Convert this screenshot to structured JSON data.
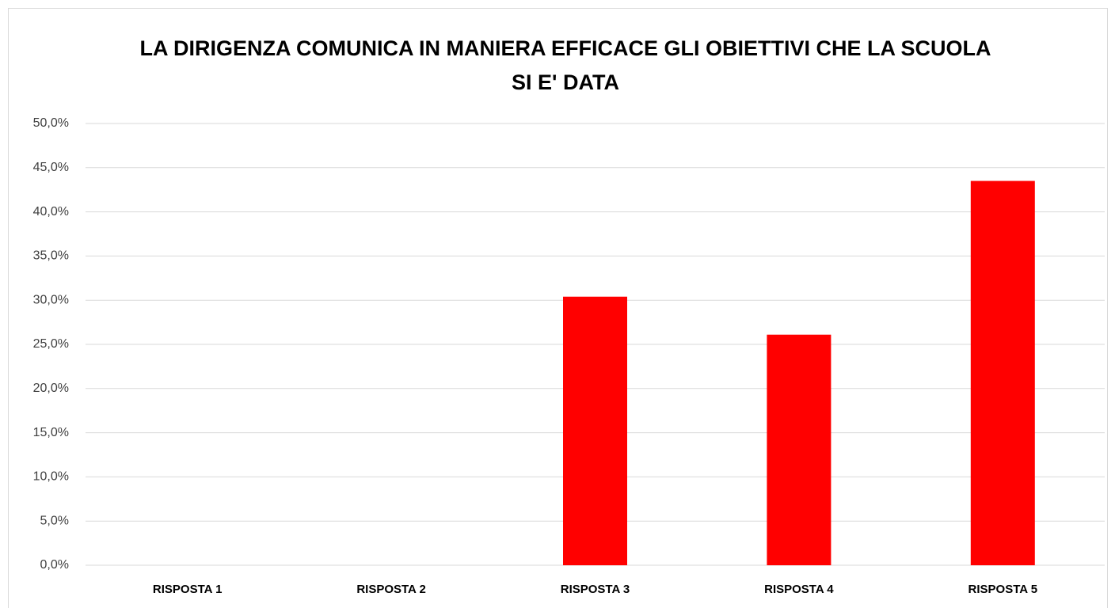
{
  "chart_data": {
    "type": "bar",
    "title": "LA DIRIGENZA COMUNICA IN MANIERA EFFICACE GLI OBIETTIVI CHE LA SCUOLA SI E' DATA",
    "categories": [
      "RISPOSTA 1",
      "RISPOSTA 2",
      "RISPOSTA 3",
      "RISPOSTA 4",
      "RISPOSTA 5"
    ],
    "values": [
      0,
      0,
      30.4,
      26.1,
      43.5
    ],
    "color": "#ff0000",
    "ylim": [
      0,
      50
    ],
    "yticks": [
      {
        "value": 0,
        "label": "0,0%"
      },
      {
        "value": 5,
        "label": "5,0%"
      },
      {
        "value": 10,
        "label": "10,0%"
      },
      {
        "value": 15,
        "label": "15,0%"
      },
      {
        "value": 20,
        "label": "20,0%"
      },
      {
        "value": 25,
        "label": "25,0%"
      },
      {
        "value": 30,
        "label": "30,0%"
      },
      {
        "value": 35,
        "label": "35,0%"
      },
      {
        "value": 40,
        "label": "40,0%"
      },
      {
        "value": 45,
        "label": "45,0%"
      },
      {
        "value": 50,
        "label": "50,0%"
      }
    ],
    "grid": true
  }
}
